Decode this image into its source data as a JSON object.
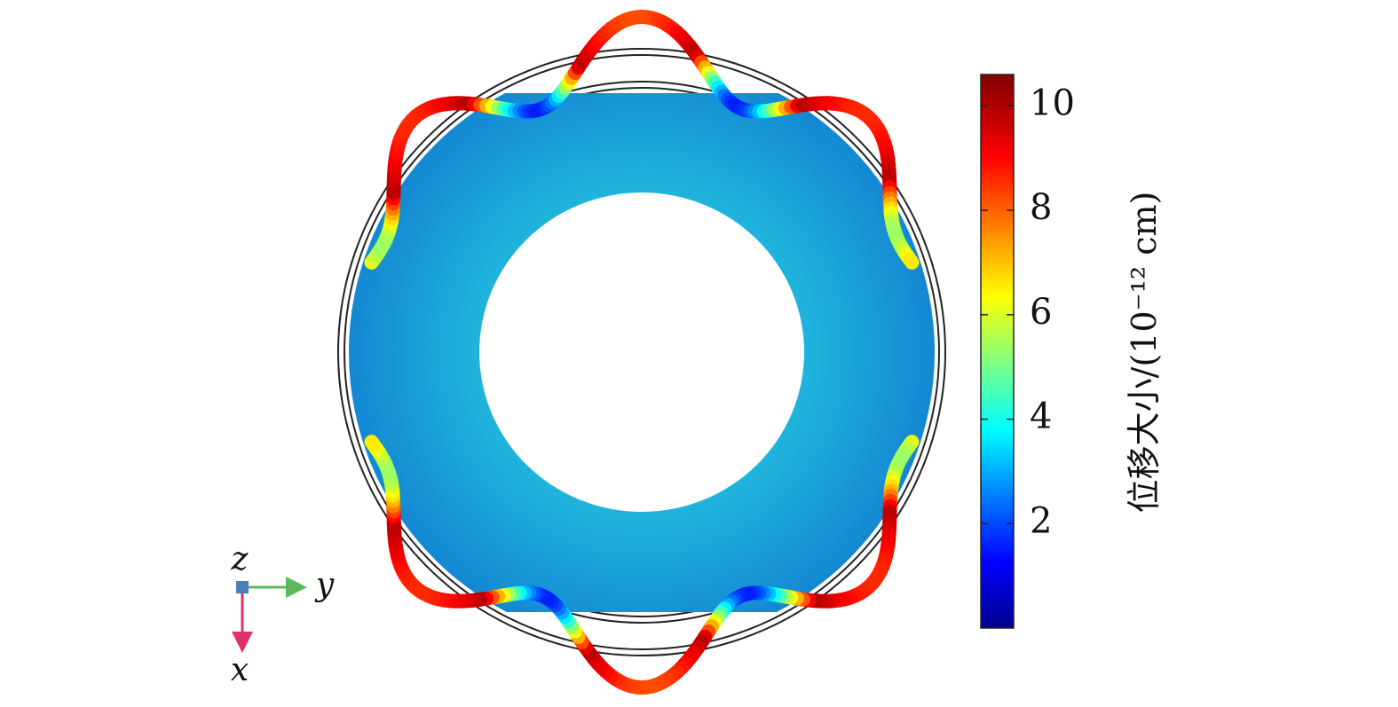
{
  "colorbar": {
    "label": "位移大小/(10⁻¹² cm)",
    "range": [
      0,
      10.6
    ],
    "ticks": [
      2,
      4,
      6,
      8,
      10
    ]
  },
  "axes": {
    "z": "z",
    "y": "y",
    "x": "x"
  }
}
